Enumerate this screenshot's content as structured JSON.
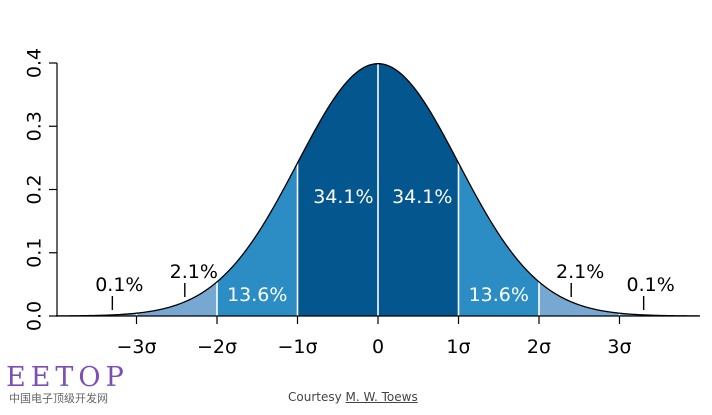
{
  "chart_data": {
    "type": "area",
    "title": "",
    "xlabel": "",
    "ylabel": "",
    "curve": "standard normal density",
    "xlim": [
      -4,
      4
    ],
    "ylim": [
      0,
      0.4
    ],
    "x_ticks": [
      "−3σ",
      "−2σ",
      "−1σ",
      "0",
      "1σ",
      "2σ",
      "3σ"
    ],
    "x_tick_values": [
      -3,
      -2,
      -1,
      0,
      1,
      2,
      3
    ],
    "y_ticks": [
      "0.0",
      "0.1",
      "0.2",
      "0.3",
      "0.4"
    ],
    "y_tick_values": [
      0.0,
      0.1,
      0.2,
      0.3,
      0.4
    ],
    "bands": [
      {
        "from": -3,
        "to": -2,
        "label": "",
        "color": "#76a8d2"
      },
      {
        "from": -2,
        "to": -1,
        "label": "13.6%",
        "color": "#2c8dc5"
      },
      {
        "from": -1,
        "to": 0,
        "label": "34.1%",
        "color": "#03568e"
      },
      {
        "from": 0,
        "to": 1,
        "label": "34.1%",
        "color": "#03568e"
      },
      {
        "from": 1,
        "to": 2,
        "label": "13.6%",
        "color": "#2c8dc5"
      },
      {
        "from": 2,
        "to": 3,
        "label": "",
        "color": "#76a8d2"
      }
    ],
    "tail_labels": [
      {
        "x": -3.3,
        "label": "0.1%"
      },
      {
        "x": -2.4,
        "label": "2.1%"
      },
      {
        "x": 2.4,
        "label": "2.1%"
      },
      {
        "x": 3.3,
        "label": "0.1%"
      }
    ]
  },
  "credit": {
    "prefix": "Courtesy ",
    "author": "M. W. Toews"
  },
  "watermark": {
    "main": "EETOP",
    "sub": "中国电子顶级开发网"
  }
}
